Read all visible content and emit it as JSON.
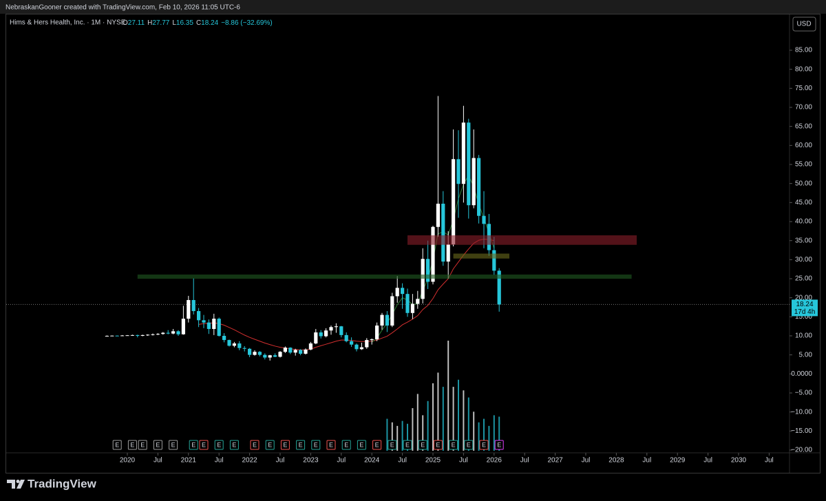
{
  "header": {
    "credit": "NebraskanGooner created with TradingView.com, Feb 10, 2026 11:05 UTC-6",
    "symbol": "Hims & Hers Health, Inc. · 1M · NYSE",
    "o": "O",
    "h": "H",
    "l": "L",
    "c": "C",
    "change": "−8.86 (−32.69%)",
    "currency": "USD",
    "countdown": "17d 4h",
    "brand": "TradingView"
  },
  "chart_data": {
    "type": "candlestick",
    "up_color": "#ffffff",
    "down_color": "#26c6da",
    "x": [
      "2019-09",
      "2019-10",
      "2019-11",
      "2019-12",
      "2020-01",
      "2020-02",
      "2020-03",
      "2020-04",
      "2020-05",
      "2020-06",
      "2020-07",
      "2020-08",
      "2020-09",
      "2020-10",
      "2020-11",
      "2020-12",
      "2021-01",
      "2021-02",
      "2021-03",
      "2021-04",
      "2021-05",
      "2021-06",
      "2021-07",
      "2021-08",
      "2021-09",
      "2021-10",
      "2021-11",
      "2021-12",
      "2022-01",
      "2022-02",
      "2022-03",
      "2022-04",
      "2022-05",
      "2022-06",
      "2022-07",
      "2022-08",
      "2022-09",
      "2022-10",
      "2022-11",
      "2022-12",
      "2023-01",
      "2023-02",
      "2023-03",
      "2023-04",
      "2023-05",
      "2023-06",
      "2023-07",
      "2023-08",
      "2023-09",
      "2023-10",
      "2023-11",
      "2023-12",
      "2024-01",
      "2024-02",
      "2024-03",
      "2024-04",
      "2024-05",
      "2024-06",
      "2024-07",
      "2024-08",
      "2024-09",
      "2024-10",
      "2024-11",
      "2024-12",
      "2025-01",
      "2025-02",
      "2025-03",
      "2025-04",
      "2025-05",
      "2025-06",
      "2025-07",
      "2025-08",
      "2025-09",
      "2025-10",
      "2025-11",
      "2025-12",
      "2026-01",
      "2026-02"
    ],
    "open": [
      10.0,
      10.0,
      10.05,
      10.0,
      10.1,
      10.15,
      10.2,
      10.0,
      10.2,
      10.3,
      10.4,
      10.5,
      10.8,
      10.6,
      11.2,
      10.4,
      14.5,
      19.4,
      16.5,
      14.1,
      13.5,
      11.8,
      14.5,
      10.0,
      8.9,
      7.4,
      8.0,
      6.8,
      6.6,
      5.0,
      5.8,
      5.0,
      4.3,
      4.9,
      4.5,
      5.8,
      6.9,
      5.6,
      6.3,
      5.3,
      6.4,
      8.0,
      10.9,
      9.9,
      11.4,
      12.3,
      12.5,
      10.2,
      8.6,
      7.7,
      6.5,
      7.0,
      8.9,
      9.1,
      12.7,
      15.5,
      12.7,
      20.4,
      22.6,
      21.0,
      16.0,
      18.4,
      19.7,
      30.2,
      24.2,
      38.6,
      44.7,
      29.5,
      34.0,
      56.4,
      49.9,
      66.0,
      44.3,
      56.7,
      41.5,
      39.4,
      32.5,
      27.11
    ],
    "high": [
      10.1,
      10.1,
      10.1,
      10.2,
      10.2,
      10.3,
      10.3,
      10.3,
      10.4,
      10.6,
      10.7,
      11.0,
      11.5,
      11.8,
      11.5,
      17.9,
      20.5,
      25.1,
      17.3,
      15.5,
      14.3,
      15.8,
      14.8,
      10.7,
      9.0,
      8.4,
      8.6,
      7.3,
      6.8,
      6.2,
      6.0,
      5.4,
      5.0,
      5.4,
      6.0,
      7.2,
      7.0,
      6.6,
      6.5,
      6.7,
      8.4,
      11.8,
      11.5,
      12.0,
      12.7,
      13.3,
      12.6,
      10.9,
      9.6,
      8.0,
      8.2,
      9.4,
      9.3,
      13.5,
      16.0,
      16.5,
      21.3,
      25.7,
      23.8,
      22.4,
      21.0,
      21.8,
      33.0,
      35.0,
      38.9,
      72.98,
      48.0,
      37.5,
      64.2,
      64.0,
      70.4,
      67.0,
      64.2,
      57.5,
      48.0,
      42.0,
      36.0,
      27.77
    ],
    "low": [
      9.9,
      9.9,
      9.95,
      9.95,
      10.0,
      10.0,
      9.6,
      9.9,
      10.0,
      10.1,
      10.2,
      10.3,
      10.4,
      10.4,
      10.0,
      10.3,
      13.5,
      15.6,
      12.3,
      12.0,
      10.5,
      10.2,
      9.8,
      8.3,
      7.2,
      7.0,
      6.2,
      5.9,
      4.4,
      4.8,
      4.6,
      3.8,
      3.5,
      4.4,
      4.3,
      5.5,
      5.2,
      4.8,
      4.9,
      5.1,
      6.2,
      7.8,
      9.3,
      9.6,
      10.3,
      10.8,
      9.6,
      8.3,
      7.1,
      5.9,
      6.3,
      6.6,
      7.7,
      8.6,
      11.6,
      11.0,
      12.3,
      18.7,
      17.1,
      15.0,
      14.4,
      17.1,
      18.5,
      22.3,
      23.5,
      36.0,
      28.4,
      25.0,
      33.5,
      41.0,
      45.0,
      40.8,
      43.5,
      39.5,
      33.0,
      31.0,
      26.0,
      16.35
    ],
    "close": [
      10.0,
      10.05,
      10.0,
      10.1,
      10.15,
      10.2,
      10.0,
      10.2,
      10.3,
      10.4,
      10.5,
      10.8,
      10.6,
      11.2,
      10.4,
      14.5,
      19.4,
      16.5,
      14.1,
      13.5,
      11.8,
      14.5,
      10.0,
      8.9,
      7.4,
      8.0,
      6.8,
      6.6,
      5.0,
      5.8,
      5.0,
      4.3,
      4.9,
      4.5,
      5.8,
      6.9,
      5.6,
      6.3,
      5.3,
      6.4,
      8.0,
      10.9,
      9.9,
      11.4,
      12.3,
      12.5,
      10.2,
      8.6,
      7.7,
      6.5,
      7.0,
      8.9,
      9.1,
      12.7,
      15.5,
      12.7,
      20.4,
      22.6,
      21.0,
      16.0,
      18.4,
      19.7,
      30.2,
      24.2,
      38.6,
      44.7,
      29.5,
      34.0,
      56.4,
      49.9,
      66.0,
      44.3,
      56.7,
      41.5,
      39.4,
      32.5,
      27.11,
      18.24
    ],
    "ma_slow": {
      "color": "#d32f2f",
      "values": [
        null,
        null,
        null,
        null,
        null,
        null,
        null,
        null,
        null,
        null,
        null,
        null,
        null,
        null,
        null,
        null,
        null,
        null,
        13.0,
        13.2,
        13.3,
        13.4,
        13.2,
        12.8,
        12.2,
        11.6,
        10.9,
        10.2,
        9.6,
        9.1,
        8.6,
        8.1,
        7.7,
        7.3,
        7.0,
        6.8,
        6.6,
        6.4,
        6.3,
        6.3,
        6.5,
        7.0,
        7.4,
        7.8,
        8.2,
        8.6,
        8.9,
        8.9,
        8.8,
        8.6,
        8.5,
        8.5,
        8.6,
        8.9,
        9.4,
        9.9,
        10.8,
        11.8,
        12.9,
        13.6,
        14.4,
        15.3,
        16.9,
        18.0,
        19.8,
        22.1,
        23.6,
        25.0,
        27.6,
        29.4,
        31.2,
        32.8,
        34.3,
        35.1,
        35.4,
        35.3,
        35.0,
        null
      ]
    },
    "ma_fast": {
      "color": "#2e7d32",
      "values": [
        null,
        null,
        null,
        null,
        null,
        null,
        null,
        null,
        null,
        null,
        null,
        null,
        null,
        null,
        null,
        null,
        null,
        null,
        null,
        null,
        null,
        null,
        null,
        null,
        null,
        null,
        null,
        null,
        null,
        null,
        null,
        null,
        null,
        null,
        null,
        null,
        null,
        null,
        null,
        null,
        null,
        null,
        null,
        null,
        null,
        null,
        null,
        null,
        null,
        null,
        null,
        null,
        8.3,
        9.4,
        11.5,
        13.3,
        15.6,
        18.2,
        20.0,
        19.4,
        18.2,
        18.4,
        22.0,
        24.8,
        30.0,
        36.8,
        37.3,
        36.5,
        40.5,
        46.0,
        49.8,
        52.2,
        49.1,
        44.5,
        40.9,
        37.0,
        33.0,
        null
      ]
    },
    "volume": [
      null,
      null,
      null,
      null,
      null,
      null,
      null,
      null,
      null,
      null,
      null,
      null,
      null,
      null,
      null,
      null,
      null,
      null,
      null,
      null,
      null,
      null,
      null,
      null,
      null,
      null,
      null,
      null,
      null,
      null,
      null,
      null,
      null,
      null,
      null,
      null,
      null,
      null,
      null,
      null,
      null,
      null,
      null,
      null,
      null,
      null,
      null,
      null,
      null,
      null,
      null,
      null,
      null,
      null,
      null,
      45,
      40,
      35,
      42,
      38,
      60,
      80,
      50,
      70,
      95,
      110,
      90,
      155,
      90,
      100,
      85,
      75,
      55,
      40,
      45,
      35,
      50,
      48
    ],
    "ylim": [
      -20,
      85
    ],
    "yticks": [
      {
        "value": 85,
        "label": "85.00"
      },
      {
        "value": 80,
        "label": "80.00"
      },
      {
        "value": 75,
        "label": "75.00"
      },
      {
        "value": 70,
        "label": "70.00"
      },
      {
        "value": 65,
        "label": "65.00"
      },
      {
        "value": 60,
        "label": "60.00"
      },
      {
        "value": 55,
        "label": "55.00"
      },
      {
        "value": 50,
        "label": "50.00"
      },
      {
        "value": 45,
        "label": "45.00"
      },
      {
        "value": 40,
        "label": "40.00"
      },
      {
        "value": 35,
        "label": "35.00"
      },
      {
        "value": 30,
        "label": "30.00"
      },
      {
        "value": 25,
        "label": "25.00"
      },
      {
        "value": 20,
        "label": "20.00"
      },
      {
        "value": 15,
        "label": "15.00"
      },
      {
        "value": 10,
        "label": "10.00"
      },
      {
        "value": 5,
        "label": "5.00"
      },
      {
        "value": 0,
        "label": "0.0000"
      },
      {
        "value": -5,
        "label": "−5.00"
      },
      {
        "value": -10,
        "label": "−10.00"
      },
      {
        "value": -15,
        "label": "−15.00"
      },
      {
        "value": -20,
        "label": "−20.00"
      }
    ],
    "xticks": [
      {
        "value": "2020-01",
        "label": "2020"
      },
      {
        "value": "2020-07",
        "label": "Jul"
      },
      {
        "value": "2021-01",
        "label": "2021"
      },
      {
        "value": "2021-07",
        "label": "Jul"
      },
      {
        "value": "2022-01",
        "label": "2022"
      },
      {
        "value": "2022-07",
        "label": "Jul"
      },
      {
        "value": "2023-01",
        "label": "2023"
      },
      {
        "value": "2023-07",
        "label": "Jul"
      },
      {
        "value": "2024-01",
        "label": "2024"
      },
      {
        "value": "2024-07",
        "label": "Jul"
      },
      {
        "value": "2025-01",
        "label": "2025"
      },
      {
        "value": "2025-07",
        "label": "Jul"
      },
      {
        "value": "2026-01",
        "label": "2026"
      },
      {
        "value": "2026-07",
        "label": "Jul"
      },
      {
        "value": "2027-01",
        "label": "2027"
      },
      {
        "value": "2027-07",
        "label": "Jul"
      },
      {
        "value": "2028-01",
        "label": "2028"
      },
      {
        "value": "2028-07",
        "label": "Jul"
      },
      {
        "value": "2029-01",
        "label": "2029"
      },
      {
        "value": "2029-07",
        "label": "Jul"
      },
      {
        "value": "2030-01",
        "label": "2030"
      },
      {
        "value": "2030-07",
        "label": "Jul"
      }
    ],
    "zones": [
      {
        "color": "#8b1e2a",
        "y": [
          33.9,
          36.4
        ],
        "x": [
          "2024-08",
          "2028-05"
        ]
      },
      {
        "color": "#1f5a22",
        "y": [
          25.0,
          26.1
        ],
        "x": [
          "2020-03",
          "2028-04"
        ]
      },
      {
        "color": "#6b6a1c",
        "y": [
          30.3,
          31.6
        ],
        "x": [
          "2025-05",
          "2026-04"
        ]
      }
    ],
    "earnings": [
      {
        "x": "2019-11",
        "label": "E",
        "color": "#9e9e9e"
      },
      {
        "x": "2020-02",
        "label": "E",
        "color": "#9e9e9e"
      },
      {
        "x": "2020-04",
        "label": "E",
        "color": "#9e9e9e"
      },
      {
        "x": "2020-07",
        "label": "E",
        "color": "#9e9e9e"
      },
      {
        "x": "2020-10",
        "label": "E",
        "color": "#9e9e9e"
      },
      {
        "x": "2021-02",
        "label": "E",
        "color": "#26a69a"
      },
      {
        "x": "2021-04",
        "label": "E",
        "color": "#ef5350"
      },
      {
        "x": "2021-07",
        "label": "E",
        "color": "#26a69a"
      },
      {
        "x": "2021-10",
        "label": "E",
        "color": "#26a69a"
      },
      {
        "x": "2022-02",
        "label": "E",
        "color": "#ef5350"
      },
      {
        "x": "2022-05",
        "label": "E",
        "color": "#26a69a"
      },
      {
        "x": "2022-08",
        "label": "E",
        "color": "#ef5350"
      },
      {
        "x": "2022-11",
        "label": "E",
        "color": "#26a69a"
      },
      {
        "x": "2023-02",
        "label": "E",
        "color": "#26a69a"
      },
      {
        "x": "2023-05",
        "label": "E",
        "color": "#ef5350"
      },
      {
        "x": "2023-08",
        "label": "E",
        "color": "#26a69a"
      },
      {
        "x": "2023-11",
        "label": "E",
        "color": "#26a69a"
      },
      {
        "x": "2024-02",
        "label": "E",
        "color": "#ef5350"
      },
      {
        "x": "2024-05",
        "label": "E",
        "color": "#26a69a"
      },
      {
        "x": "2024-08",
        "label": "E",
        "color": "#26a69a"
      },
      {
        "x": "2024-11",
        "label": "E",
        "color": "#26a69a"
      },
      {
        "x": "2025-02",
        "label": "E",
        "color": "#ef5350"
      },
      {
        "x": "2025-05",
        "label": "E",
        "color": "#26a69a"
      },
      {
        "x": "2025-08",
        "label": "E",
        "color": "#26a69a"
      },
      {
        "x": "2025-11",
        "label": "E",
        "color": "#ef5350"
      },
      {
        "x": "2026-02",
        "label": "E",
        "color": "#e040fb"
      }
    ]
  }
}
